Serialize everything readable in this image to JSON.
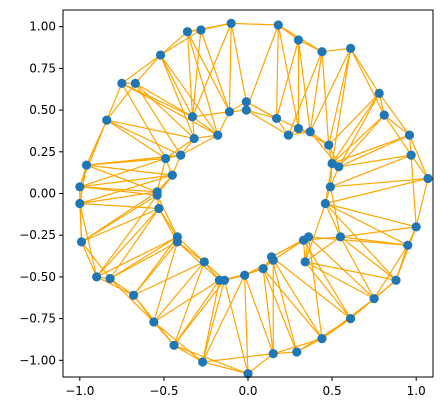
{
  "chart_data": {
    "type": "scatter",
    "title": "",
    "xlabel": "",
    "ylabel": "",
    "xlim": [
      -1.1,
      1.1
    ],
    "ylim": [
      -1.1,
      1.1
    ],
    "grid": false,
    "x_ticks": [
      -1.0,
      -0.5,
      0.0,
      0.5,
      1.0
    ],
    "x_tick_labels": [
      "−1.0",
      "−0.5",
      "0.0",
      "0.5",
      "1.0"
    ],
    "y_ticks": [
      1.0,
      0.75,
      0.5,
      0.25,
      0.0,
      -0.25,
      -0.5,
      -0.75,
      -1.0
    ],
    "y_tick_labels": [
      "1.00",
      "0.75",
      "0.50",
      "0.25",
      "0.00",
      "−0.25",
      "−0.50",
      "−0.75",
      "−1.00"
    ],
    "point_color": "#1f77b4",
    "edge_color": "#ffa500",
    "points": [
      [
        -0.1,
        1.02
      ],
      [
        0.18,
        1.01
      ],
      [
        -0.36,
        0.97
      ],
      [
        -0.28,
        0.98
      ],
      [
        0.3,
        0.92
      ],
      [
        0.44,
        0.85
      ],
      [
        0.61,
        0.87
      ],
      [
        -0.52,
        0.83
      ],
      [
        -0.75,
        0.66
      ],
      [
        -0.67,
        0.66
      ],
      [
        0.78,
        0.6
      ],
      [
        0.81,
        0.47
      ],
      [
        0.96,
        0.35
      ],
      [
        0.97,
        0.23
      ],
      [
        1.07,
        0.09
      ],
      [
        -0.84,
        0.44
      ],
      [
        -0.96,
        0.17
      ],
      [
        -1.0,
        0.04
      ],
      [
        -1.0,
        -0.06
      ],
      [
        -0.99,
        -0.29
      ],
      [
        -0.9,
        -0.5
      ],
      [
        -0.82,
        -0.51
      ],
      [
        -0.68,
        -0.61
      ],
      [
        -0.56,
        -0.77
      ],
      [
        -0.44,
        -0.91
      ],
      [
        -0.27,
        -1.01
      ],
      [
        0.15,
        -0.96
      ],
      [
        0.29,
        -0.95
      ],
      [
        0.44,
        -0.87
      ],
      [
        0.61,
        -0.75
      ],
      [
        0.75,
        -0.63
      ],
      [
        0.88,
        -0.52
      ],
      [
        0.95,
        -0.31
      ],
      [
        1.0,
        -0.2
      ],
      [
        0.0,
        -1.08
      ],
      [
        -0.01,
        0.55
      ],
      [
        -0.01,
        0.5
      ],
      [
        -0.11,
        0.49
      ],
      [
        0.17,
        0.45
      ],
      [
        -0.33,
        0.46
      ],
      [
        0.24,
        0.35
      ],
      [
        0.3,
        0.39
      ],
      [
        0.37,
        0.37
      ],
      [
        -0.18,
        0.35
      ],
      [
        -0.32,
        0.33
      ],
      [
        0.48,
        0.29
      ],
      [
        -0.4,
        0.23
      ],
      [
        -0.49,
        0.21
      ],
      [
        0.5,
        0.18
      ],
      [
        0.54,
        0.16
      ],
      [
        -0.45,
        0.11
      ],
      [
        -0.54,
        0.01
      ],
      [
        -0.54,
        -0.01
      ],
      [
        0.49,
        0.04
      ],
      [
        -0.53,
        -0.09
      ],
      [
        0.46,
        -0.06
      ],
      [
        -0.42,
        -0.26
      ],
      [
        -0.42,
        -0.29
      ],
      [
        0.36,
        -0.26
      ],
      [
        0.33,
        -0.28
      ],
      [
        0.55,
        -0.26
      ],
      [
        -0.26,
        -0.41
      ],
      [
        0.14,
        -0.38
      ],
      [
        0.15,
        -0.4
      ],
      [
        0.09,
        -0.45
      ],
      [
        -0.02,
        -0.49
      ],
      [
        -0.17,
        -0.52
      ],
      [
        -0.14,
        -0.52
      ],
      [
        0.34,
        -0.41
      ]
    ],
    "edges": [
      [
        0,
        1
      ],
      [
        0,
        2
      ],
      [
        0,
        3
      ],
      [
        1,
        4
      ],
      [
        4,
        5
      ],
      [
        5,
        6
      ],
      [
        1,
        5
      ],
      [
        2,
        3
      ],
      [
        2,
        7
      ],
      [
        3,
        7
      ],
      [
        7,
        8
      ],
      [
        8,
        9
      ],
      [
        7,
        9
      ],
      [
        8,
        15
      ],
      [
        9,
        15
      ],
      [
        15,
        16
      ],
      [
        16,
        17
      ],
      [
        17,
        18
      ],
      [
        18,
        19
      ],
      [
        19,
        20
      ],
      [
        20,
        21
      ],
      [
        21,
        22
      ],
      [
        22,
        23
      ],
      [
        23,
        24
      ],
      [
        24,
        25
      ],
      [
        25,
        34
      ],
      [
        34,
        26
      ],
      [
        26,
        27
      ],
      [
        27,
        28
      ],
      [
        28,
        29
      ],
      [
        29,
        30
      ],
      [
        30,
        31
      ],
      [
        31,
        32
      ],
      [
        32,
        33
      ],
      [
        33,
        14
      ],
      [
        14,
        13
      ],
      [
        13,
        12
      ],
      [
        12,
        11
      ],
      [
        11,
        10
      ],
      [
        10,
        6
      ],
      [
        6,
        11
      ],
      [
        10,
        12
      ],
      [
        11,
        13
      ],
      [
        12,
        14
      ],
      [
        13,
        33
      ],
      [
        32,
        31
      ],
      [
        31,
        33
      ],
      [
        30,
        32
      ],
      [
        29,
        31
      ],
      [
        28,
        30
      ],
      [
        27,
        29
      ],
      [
        26,
        28
      ],
      [
        25,
        26
      ],
      [
        24,
        34
      ],
      [
        23,
        25
      ],
      [
        22,
        24
      ],
      [
        21,
        23
      ],
      [
        20,
        22
      ],
      [
        19,
        21
      ],
      [
        18,
        20
      ],
      [
        17,
        19
      ],
      [
        16,
        18
      ],
      [
        15,
        17
      ],
      [
        0,
        37
      ],
      [
        0,
        39
      ],
      [
        1,
        38
      ],
      [
        1,
        36
      ],
      [
        3,
        39
      ],
      [
        2,
        37
      ],
      [
        4,
        38
      ],
      [
        4,
        41
      ],
      [
        5,
        42
      ],
      [
        5,
        40
      ],
      [
        6,
        45
      ],
      [
        6,
        42
      ],
      [
        10,
        45
      ],
      [
        10,
        49
      ],
      [
        11,
        48
      ],
      [
        11,
        49
      ],
      [
        12,
        49
      ],
      [
        13,
        53
      ],
      [
        14,
        53
      ],
      [
        14,
        55
      ],
      [
        33,
        55
      ],
      [
        33,
        60
      ],
      [
        32,
        60
      ],
      [
        32,
        58
      ],
      [
        31,
        60
      ],
      [
        31,
        68
      ],
      [
        30,
        68
      ],
      [
        30,
        60
      ],
      [
        29,
        68
      ],
      [
        29,
        62
      ],
      [
        28,
        62
      ],
      [
        28,
        64
      ],
      [
        27,
        64
      ],
      [
        26,
        65
      ],
      [
        26,
        64
      ],
      [
        34,
        65
      ],
      [
        34,
        67
      ],
      [
        25,
        66
      ],
      [
        25,
        67
      ],
      [
        24,
        66
      ],
      [
        24,
        61
      ],
      [
        23,
        57
      ],
      [
        23,
        61
      ],
      [
        22,
        57
      ],
      [
        22,
        56
      ],
      [
        21,
        56
      ],
      [
        21,
        54
      ],
      [
        20,
        54
      ],
      [
        20,
        52
      ],
      [
        19,
        52
      ],
      [
        19,
        51
      ],
      [
        18,
        51
      ],
      [
        18,
        50
      ],
      [
        17,
        50
      ],
      [
        17,
        47
      ],
      [
        16,
        47
      ],
      [
        16,
        46
      ],
      [
        15,
        46
      ],
      [
        15,
        44
      ],
      [
        9,
        44
      ],
      [
        9,
        39
      ],
      [
        8,
        39
      ],
      [
        8,
        43
      ],
      [
        7,
        39
      ],
      [
        7,
        43
      ],
      [
        2,
        39
      ],
      [
        36,
        35
      ],
      [
        35,
        37
      ],
      [
        37,
        39
      ],
      [
        39,
        43
      ],
      [
        43,
        44
      ],
      [
        44,
        46
      ],
      [
        46,
        47
      ],
      [
        47,
        50
      ],
      [
        50,
        51
      ],
      [
        51,
        52
      ],
      [
        52,
        54
      ],
      [
        54,
        56
      ],
      [
        56,
        57
      ],
      [
        57,
        61
      ],
      [
        61,
        66
      ],
      [
        66,
        67
      ],
      [
        67,
        65
      ],
      [
        65,
        64
      ],
      [
        64,
        63
      ],
      [
        63,
        62
      ],
      [
        62,
        58
      ],
      [
        58,
        59
      ],
      [
        59,
        68
      ],
      [
        68,
        60
      ],
      [
        60,
        55
      ],
      [
        55,
        53
      ],
      [
        53,
        48
      ],
      [
        48,
        49
      ],
      [
        49,
        45
      ],
      [
        45,
        42
      ],
      [
        42,
        41
      ],
      [
        41,
        40
      ],
      [
        40,
        38
      ],
      [
        38,
        36
      ],
      [
        36,
        37
      ],
      [
        35,
        38
      ],
      [
        37,
        43
      ],
      [
        39,
        44
      ],
      [
        43,
        46
      ],
      [
        44,
        47
      ],
      [
        46,
        50
      ],
      [
        47,
        51
      ],
      [
        50,
        52
      ],
      [
        51,
        54
      ],
      [
        52,
        56
      ],
      [
        54,
        57
      ],
      [
        56,
        61
      ],
      [
        57,
        66
      ],
      [
        61,
        67
      ],
      [
        66,
        65
      ],
      [
        67,
        64
      ],
      [
        65,
        63
      ],
      [
        64,
        62
      ],
      [
        63,
        58
      ],
      [
        62,
        59
      ],
      [
        58,
        68
      ],
      [
        59,
        60
      ],
      [
        68,
        55
      ],
      [
        60,
        53
      ],
      [
        55,
        48
      ],
      [
        53,
        49
      ],
      [
        48,
        45
      ],
      [
        49,
        42
      ],
      [
        45,
        41
      ],
      [
        42,
        40
      ],
      [
        41,
        38
      ],
      [
        40,
        36
      ],
      [
        38,
        35
      ],
      [
        1,
        41
      ],
      [
        0,
        35
      ],
      [
        3,
        37
      ],
      [
        12,
        48
      ],
      [
        13,
        49
      ],
      [
        16,
        50
      ],
      [
        17,
        51
      ],
      [
        18,
        54
      ],
      [
        19,
        54
      ],
      [
        20,
        56
      ],
      [
        21,
        57
      ],
      [
        22,
        61
      ],
      [
        23,
        66
      ],
      [
        24,
        67
      ],
      [
        25,
        65
      ],
      [
        26,
        63
      ],
      [
        27,
        62
      ],
      [
        28,
        58
      ],
      [
        29,
        59
      ],
      [
        30,
        58
      ],
      [
        31,
        55
      ],
      [
        32,
        55
      ],
      [
        9,
        46
      ],
      [
        8,
        47
      ],
      [
        15,
        47
      ],
      [
        16,
        51
      ],
      [
        17,
        52
      ],
      [
        4,
        42
      ],
      [
        5,
        45
      ],
      [
        6,
        48
      ],
      [
        2,
        43
      ],
      [
        7,
        44
      ],
      [
        10,
        48
      ]
    ]
  }
}
